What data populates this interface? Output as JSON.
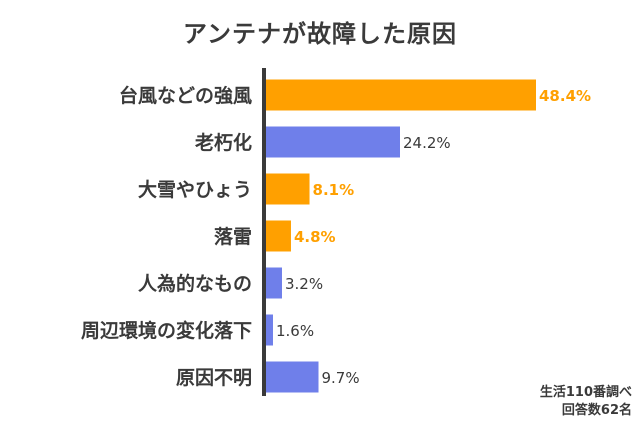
{
  "title": "アンテナが故障した原因",
  "note": {
    "line1": "生活110番調べ",
    "line2": "回答数62名"
  },
  "colors": {
    "highlight": "#FFA000",
    "normal": "#6F7FEA",
    "axis": "#3a3a3a",
    "label": "#3a3a3a"
  },
  "chart_data": {
    "type": "bar",
    "orientation": "horizontal",
    "unit": "%",
    "categories": [
      "台風などの強風",
      "老朽化",
      "大雪やひょう",
      "落雷",
      "人為的なもの",
      "周辺環境の変化落下",
      "原因不明"
    ],
    "values": [
      48.4,
      24.2,
      8.1,
      4.8,
      3.2,
      1.6,
      9.7
    ],
    "highlighted": [
      true,
      false,
      true,
      true,
      false,
      false,
      false
    ],
    "value_labels": [
      "48.4%",
      "24.2%",
      "8.1%",
      "4.8%",
      "3.2%",
      "1.6%",
      "9.7%"
    ],
    "xlim": [
      0,
      50
    ],
    "grid": false,
    "legend": "none"
  }
}
